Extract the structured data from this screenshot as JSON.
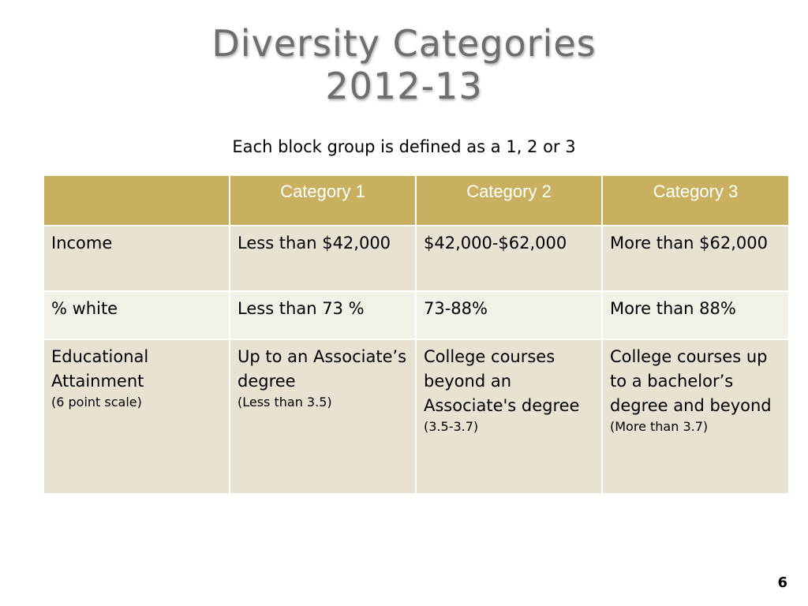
{
  "title": {
    "line1": "Diversity Categories",
    "line2": "2012-13"
  },
  "subtitle": "Each block group is defined as a 1, 2 or 3",
  "table": {
    "headers": [
      "",
      "Category 1",
      "Category 2",
      "Category 3"
    ],
    "rows": [
      {
        "label": "Income",
        "label_note": "",
        "cells": [
          {
            "text": "Less than $42,000",
            "note": ""
          },
          {
            "text": "$42,000-$62,000",
            "note": ""
          },
          {
            "text": "More than $62,000",
            "note": ""
          }
        ]
      },
      {
        "label": "% white",
        "label_note": "",
        "cells": [
          {
            "text": "Less than 73 %",
            "note": ""
          },
          {
            "text": "73-88%",
            "note": ""
          },
          {
            "text": "More than 88%",
            "note": ""
          }
        ]
      },
      {
        "label": "Educational Attainment",
        "label_note": "(6 point scale)",
        "cells": [
          {
            "text": "Up to an Associate’s degree",
            "note": "(Less than 3.5)"
          },
          {
            "text": "College courses beyond an Associate's degree",
            "note": "(3.5-3.7)"
          },
          {
            "text": "College courses up to a bachelor’s degree and beyond",
            "note": "(More than 3.7)"
          }
        ]
      }
    ]
  },
  "page_number": "6",
  "colors": {
    "header_bg": "#c8b060",
    "band_dark": "#e8e2d2",
    "band_light": "#f3f0e8",
    "title_gray": "#6e6e6e"
  }
}
